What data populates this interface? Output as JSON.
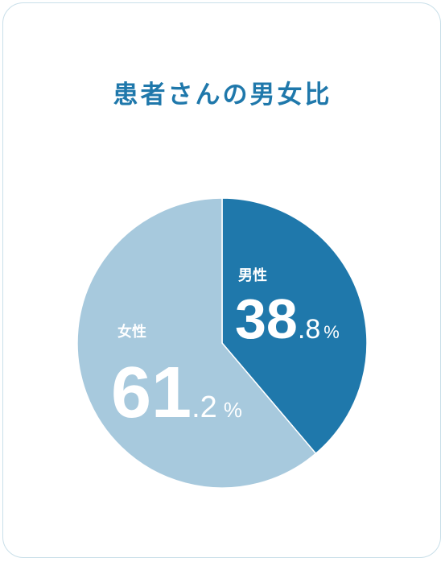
{
  "title": "患者さんの男女比",
  "colors": {
    "male": "#1f78ab",
    "female": "#a7c9dd",
    "border": "#c9dfe9",
    "text": "#ffffff"
  },
  "chart_data": {
    "type": "pie",
    "title": "患者さんの男女比",
    "slices": [
      {
        "label": "男性",
        "value": 38.8,
        "int_part": "38",
        "dec_part": ".8",
        "unit": "%"
      },
      {
        "label": "女性",
        "value": 61.2,
        "int_part": "61",
        "dec_part": ".2",
        "unit": "%"
      }
    ]
  }
}
